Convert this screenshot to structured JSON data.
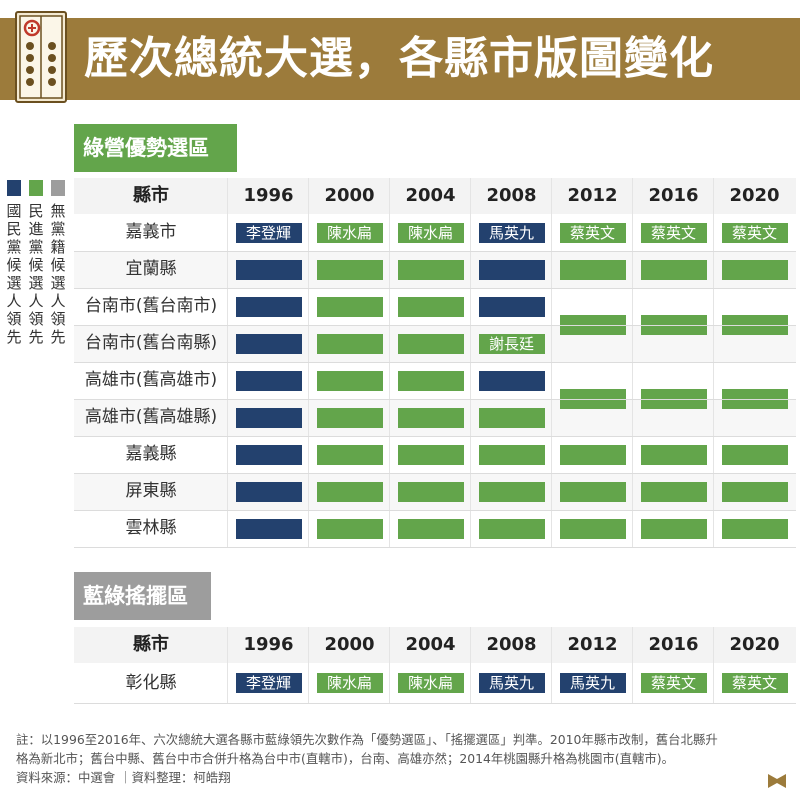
{
  "header": {
    "title": "歷次總統大選，各縣市版圖變化"
  },
  "legend": [
    {
      "name": "國民黨候選人領先",
      "color": "#23416e"
    },
    {
      "name": "民進黨候選人領先",
      "color": "#63a54b"
    },
    {
      "name": "無黨籍候選人領先",
      "color": "#9d9d9d"
    }
  ],
  "colors": {
    "kmt": "#23416e",
    "dpp": "#63a54b",
    "gray": "#9d9d9d",
    "brand": "#9c7b3b"
  },
  "sections": [
    {
      "title": "綠營優勢選區"
    },
    {
      "title": "藍綠搖擺區"
    }
  ],
  "table_header": {
    "region": "縣市",
    "years": [
      "1996",
      "2000",
      "2004",
      "2008",
      "2012",
      "2016",
      "2020"
    ]
  },
  "chart_data": {
    "type": "table",
    "years": [
      "1996",
      "2000",
      "2004",
      "2008",
      "2012",
      "2016",
      "2020"
    ],
    "legend": {
      "K": "國民黨候選人領先",
      "D": "民進黨候選人領先",
      "I": "無黨籍候選人領先"
    },
    "candidates": [
      "李登輝",
      "陳水扁",
      "陳水扁",
      "馬英九",
      "蔡英文",
      "蔡英文",
      "蔡英文"
    ],
    "green_zone": {
      "rows": [
        {
          "name": "嘉義市",
          "leads": [
            "K",
            "D",
            "D",
            "K",
            "D",
            "D",
            "D"
          ],
          "labels": [
            "李登輝",
            "陳水扁",
            "陳水扁",
            "馬英九",
            "蔡英文",
            "蔡英文",
            "蔡英文"
          ]
        },
        {
          "name": "宜蘭縣",
          "leads": [
            "K",
            "D",
            "D",
            "K",
            "D",
            "D",
            "D"
          ]
        },
        {
          "name": "台南市(舊台南市)",
          "leads": [
            "K",
            "D",
            "D",
            "K",
            "D",
            "D",
            "D"
          ]
        },
        {
          "name": "台南市(舊台南縣)",
          "leads": [
            "K",
            "D",
            "D",
            "D",
            "D",
            "D",
            "D"
          ],
          "labels": [
            "",
            "",
            "",
            "謝長廷",
            "",
            "",
            ""
          ]
        },
        {
          "name": "高雄市(舊高雄市)",
          "leads": [
            "K",
            "D",
            "D",
            "K",
            "D",
            "D",
            "D"
          ]
        },
        {
          "name": "高雄市(舊高雄縣)",
          "leads": [
            "K",
            "D",
            "D",
            "D",
            "D",
            "D",
            "D"
          ]
        },
        {
          "name": "嘉義縣",
          "leads": [
            "K",
            "D",
            "D",
            "D",
            "D",
            "D",
            "D"
          ]
        },
        {
          "name": "屏東縣",
          "leads": [
            "K",
            "D",
            "D",
            "D",
            "D",
            "D",
            "D"
          ]
        },
        {
          "name": "雲林縣",
          "leads": [
            "K",
            "D",
            "D",
            "D",
            "D",
            "D",
            "D"
          ]
        }
      ]
    },
    "swing_zone": {
      "rows": [
        {
          "name": "彰化縣",
          "leads": [
            "K",
            "D",
            "D",
            "K",
            "K",
            "D",
            "D"
          ],
          "labels": [
            "李登輝",
            "陳水扁",
            "陳水扁",
            "馬英九",
            "馬英九",
            "蔡英文",
            "蔡英文"
          ]
        }
      ]
    }
  },
  "notes": [
    "註：以1996至2016年、六次總統大選各縣市藍綠領先次數作為「優勢選區」、「搖擺選區」判準。2010年縣市改制，舊台北縣升",
    "格為新北市；舊台中縣、舊台中市合併升格為台中市(直轄市)，台南、高雄亦然；2014年桃園縣升格為桃園市(直轄市)。",
    "資料來源：中選會 ｜資料整理：柯皓翔"
  ]
}
